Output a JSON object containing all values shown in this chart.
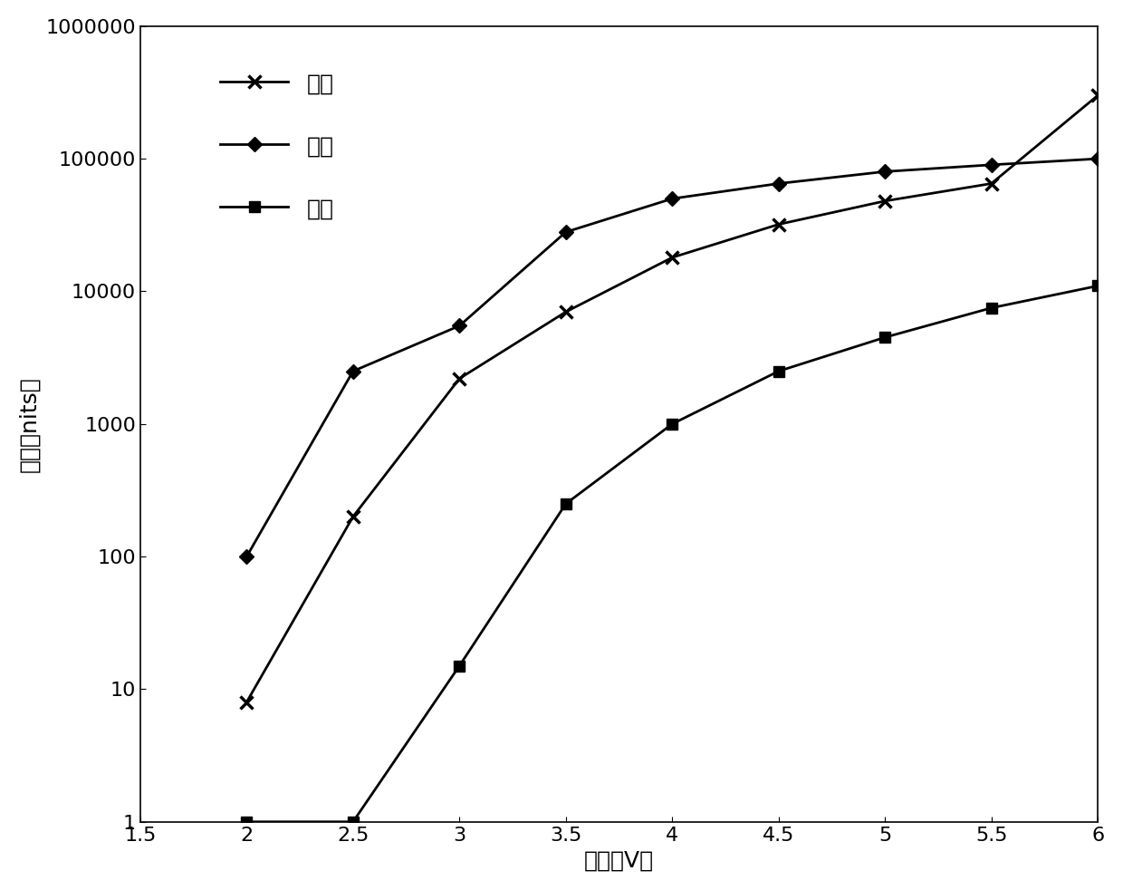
{
  "red_x": [
    2.0,
    2.5,
    3.0,
    3.5,
    4.0,
    4.5,
    5.0,
    5.5,
    6.0
  ],
  "red_y": [
    8,
    200,
    2200,
    7000,
    18000,
    32000,
    48000,
    65000,
    300000
  ],
  "green_x": [
    2.0,
    2.5,
    3.0,
    3.5,
    4.0,
    4.5,
    5.0,
    5.5,
    6.0
  ],
  "green_y": [
    100,
    2500,
    5500,
    28000,
    50000,
    65000,
    80000,
    90000,
    100000
  ],
  "blue_x": [
    2.0,
    2.5,
    3.0,
    3.5,
    4.0,
    4.5,
    5.0,
    5.5,
    6.0
  ],
  "blue_y": [
    1,
    1,
    15,
    250,
    1000,
    2500,
    4500,
    7500,
    11000
  ],
  "xlabel": "电压（V）",
  "ylabel": "亮度（nits）",
  "legend_red": "红色",
  "legend_green": "绻色",
  "legend_blue": "蓝色",
  "xlim": [
    1.5,
    6.0
  ],
  "ylim_min": 1,
  "ylim_max": 1000000,
  "xticks": [
    1.5,
    2.0,
    2.5,
    3.0,
    3.5,
    4.0,
    4.5,
    5.0,
    5.5,
    6.0
  ],
  "xtick_labels": [
    "1.5",
    "2",
    "2.5",
    "3",
    "3.5",
    "4",
    "4.5",
    "5",
    "5.5",
    "6"
  ],
  "yticks": [
    1,
    10,
    100,
    1000,
    10000,
    100000,
    1000000
  ],
  "ytick_labels": [
    "1",
    "10",
    "100",
    "1000",
    "10000",
    "100000",
    "1000000"
  ],
  "background_color": "#ffffff",
  "line_color": "#000000",
  "marker_size": 10,
  "line_width": 2.0,
  "font_size_axis": 18,
  "font_size_legend": 18,
  "font_size_tick": 16
}
